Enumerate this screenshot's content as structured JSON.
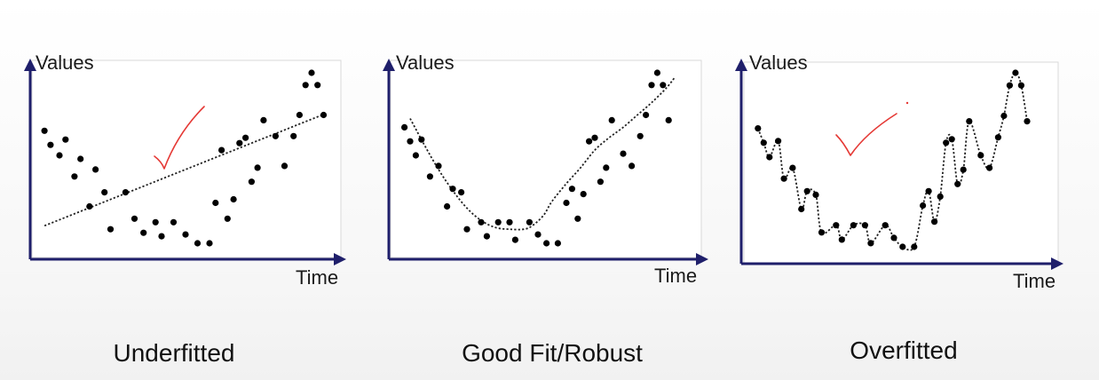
{
  "chart_data": [
    {
      "type": "scatter",
      "ylabel": "Values",
      "xlabel": "Time",
      "caption": "Underfitted",
      "fit": "linear",
      "xlim": [
        0,
        100
      ],
      "ylim": [
        0,
        100
      ],
      "points": [
        [
          3,
          66
        ],
        [
          5,
          58
        ],
        [
          8,
          52
        ],
        [
          10,
          61
        ],
        [
          13,
          40
        ],
        [
          15,
          50
        ],
        [
          18,
          23
        ],
        [
          20,
          44
        ],
        [
          23,
          31
        ],
        [
          25,
          10
        ],
        [
          30,
          31
        ],
        [
          33,
          16
        ],
        [
          36,
          8
        ],
        [
          40,
          14
        ],
        [
          42,
          6
        ],
        [
          46,
          14
        ],
        [
          50,
          7
        ],
        [
          54,
          2
        ],
        [
          58,
          2
        ],
        [
          60,
          25
        ],
        [
          62,
          55
        ],
        [
          64,
          16
        ],
        [
          66,
          27
        ],
        [
          68,
          59
        ],
        [
          70,
          62
        ],
        [
          72,
          37
        ],
        [
          74,
          45
        ],
        [
          76,
          72
        ],
        [
          80,
          63
        ],
        [
          83,
          46
        ],
        [
          86,
          63
        ],
        [
          88,
          75
        ],
        [
          90,
          92
        ],
        [
          92,
          99
        ],
        [
          94,
          92
        ],
        [
          96,
          75
        ]
      ],
      "fit_curve": [
        [
          3,
          12
        ],
        [
          97,
          76
        ]
      ],
      "annotation_color": "#e53935"
    },
    {
      "type": "scatter",
      "ylabel": "Values",
      "xlabel": "Time",
      "caption": "Good Fit/Robust",
      "fit": "smooth",
      "xlim": [
        0,
        100
      ],
      "ylim": [
        0,
        100
      ],
      "points": [
        [
          3,
          68
        ],
        [
          5,
          60
        ],
        [
          7,
          52
        ],
        [
          9,
          61
        ],
        [
          12,
          40
        ],
        [
          15,
          46
        ],
        [
          18,
          23
        ],
        [
          20,
          33
        ],
        [
          23,
          31
        ],
        [
          25,
          10
        ],
        [
          30,
          14
        ],
        [
          32,
          6
        ],
        [
          36,
          14
        ],
        [
          40,
          14
        ],
        [
          42,
          4
        ],
        [
          47,
          14
        ],
        [
          50,
          7
        ],
        [
          53,
          2
        ],
        [
          57,
          2
        ],
        [
          60,
          25
        ],
        [
          62,
          33
        ],
        [
          64,
          16
        ],
        [
          66,
          30
        ],
        [
          68,
          60
        ],
        [
          70,
          62
        ],
        [
          72,
          37
        ],
        [
          74,
          45
        ],
        [
          76,
          72
        ],
        [
          80,
          53
        ],
        [
          83,
          46
        ],
        [
          86,
          63
        ],
        [
          88,
          75
        ],
        [
          90,
          92
        ],
        [
          92,
          99
        ],
        [
          94,
          92
        ],
        [
          96,
          72
        ]
      ],
      "fit_curve": [
        [
          5,
          73
        ],
        [
          10,
          58
        ],
        [
          15,
          44
        ],
        [
          20,
          32
        ],
        [
          25,
          22
        ],
        [
          30,
          15
        ],
        [
          35,
          11
        ],
        [
          40,
          10
        ],
        [
          45,
          10
        ],
        [
          48,
          12
        ],
        [
          52,
          18
        ],
        [
          55,
          26
        ],
        [
          60,
          36
        ],
        [
          65,
          45
        ],
        [
          70,
          55
        ],
        [
          75,
          62
        ],
        [
          80,
          68
        ],
        [
          85,
          75
        ],
        [
          90,
          82
        ],
        [
          95,
          90
        ],
        [
          98,
          96
        ]
      ],
      "annotation_color": "#e53935"
    },
    {
      "type": "scatter",
      "ylabel": "Values",
      "xlabel": "Time",
      "caption": "Overfitted",
      "fit": "interpolating",
      "xlim": [
        0,
        100
      ],
      "ylim": [
        0,
        100
      ],
      "points": [
        [
          3,
          68
        ],
        [
          5,
          60
        ],
        [
          7,
          52
        ],
        [
          10,
          61
        ],
        [
          12,
          40
        ],
        [
          15,
          46
        ],
        [
          18,
          23
        ],
        [
          20,
          33
        ],
        [
          23,
          31
        ],
        [
          25,
          10
        ],
        [
          30,
          14
        ],
        [
          32,
          6
        ],
        [
          36,
          14
        ],
        [
          40,
          14
        ],
        [
          42,
          4
        ],
        [
          47,
          14
        ],
        [
          50,
          7
        ],
        [
          53,
          2
        ],
        [
          57,
          2
        ],
        [
          60,
          25
        ],
        [
          62,
          33
        ],
        [
          64,
          16
        ],
        [
          66,
          30
        ],
        [
          68,
          60
        ],
        [
          70,
          62
        ],
        [
          72,
          37
        ],
        [
          74,
          45
        ],
        [
          76,
          72
        ],
        [
          80,
          53
        ],
        [
          83,
          46
        ],
        [
          86,
          63
        ],
        [
          88,
          75
        ],
        [
          90,
          92
        ],
        [
          92,
          99
        ],
        [
          94,
          92
        ],
        [
          96,
          72
        ]
      ],
      "fit_curve": [],
      "annotation_color": "#e53935"
    }
  ],
  "style": {
    "axis_color": "#1f1f6b",
    "point_color": "#000000"
  }
}
